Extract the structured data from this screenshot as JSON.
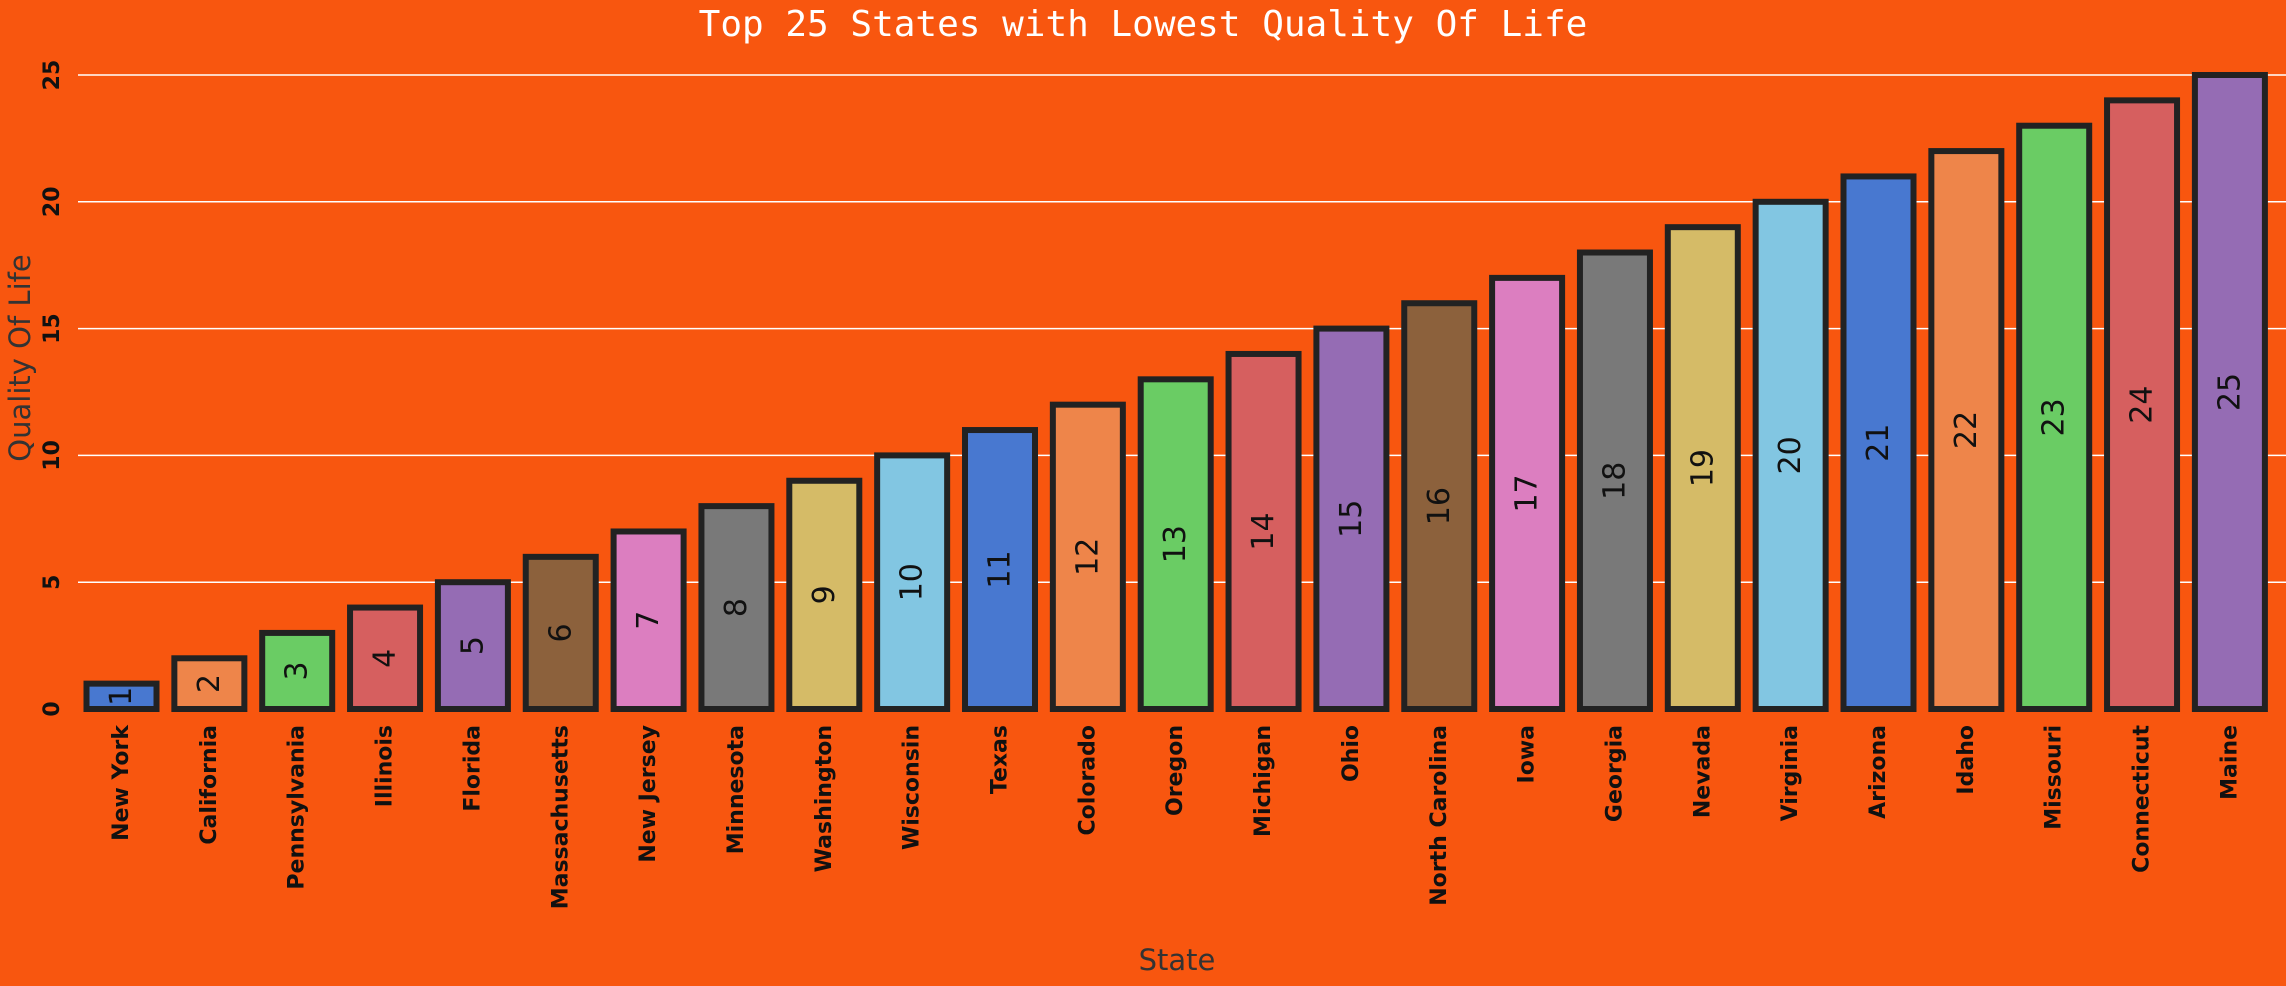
{
  "chart_data": {
    "type": "bar",
    "title": "Top 25 States with Lowest Quality Of Life",
    "xlabel": "State",
    "ylabel": "Quality Of Life",
    "ylim": [
      0,
      25
    ],
    "yticks": [
      0,
      5,
      10,
      15,
      20,
      25
    ],
    "ytick_labels": [
      "0",
      "5",
      "10",
      "15",
      "20",
      "25"
    ],
    "grid": true,
    "categories": [
      "New York",
      "California",
      "Pennsylvania",
      "Illinois",
      "Florida",
      "Massachusetts",
      "New Jersey",
      "Minnesota",
      "Washington",
      "Wisconsin",
      "Texas",
      "Colorado",
      "Oregon",
      "Michigan",
      "Ohio",
      "North Carolina",
      "Iowa",
      "Georgia",
      "Nevada",
      "Virginia",
      "Arizona",
      "Idaho",
      "Missouri",
      "Connecticut",
      "Maine"
    ],
    "values": [
      1,
      2,
      3,
      4,
      5,
      6,
      7,
      8,
      9,
      10,
      11,
      12,
      13,
      14,
      15,
      16,
      17,
      18,
      19,
      20,
      21,
      22,
      23,
      24,
      25
    ],
    "value_labels": [
      "1",
      "2",
      "3",
      "4",
      "5",
      "6",
      "7",
      "8",
      "9",
      "10",
      "11",
      "12",
      "13",
      "14",
      "15",
      "16",
      "17",
      "18",
      "19",
      "20",
      "21",
      "22",
      "23",
      "24",
      "25"
    ],
    "colors": [
      "#4878D0",
      "#EE854A",
      "#6ACC64",
      "#D65F5F",
      "#956CB4",
      "#8C613C",
      "#DC7EC0",
      "#797979",
      "#D5BB67",
      "#82C6E2",
      "#4878D0",
      "#EE854A",
      "#6ACC64",
      "#D65F5F",
      "#956CB4",
      "#8C613C",
      "#DC7EC0",
      "#797979",
      "#D5BB67",
      "#82C6E2",
      "#4878D0",
      "#EE854A",
      "#6ACC64",
      "#D65F5F",
      "#956CB4"
    ],
    "background_color": "#F8560F",
    "grid_color": "#FFFFFF",
    "edge_color": "#222222"
  }
}
